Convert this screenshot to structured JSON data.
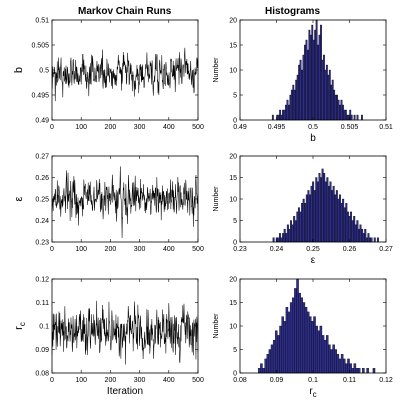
{
  "column_titles": {
    "left": "Markov Chain Runs",
    "right": "Histograms"
  },
  "colors": {
    "trace": "#000000",
    "bar_fill": "#2e2e8a",
    "bar_edge": "#000000",
    "axis": "#000000"
  },
  "chart_data": [
    {
      "type": "line",
      "panel": "trace-b",
      "ylabel": "b",
      "xlabel": "",
      "xlim": [
        0,
        500
      ],
      "ylim": [
        0.49,
        0.51
      ],
      "x_ticks": [
        "0",
        "100",
        "200",
        "300",
        "400",
        "500"
      ],
      "y_ticks": [
        "0.49",
        "0.495",
        "0.5",
        "0.505",
        "0.51"
      ],
      "series": [
        {
          "mean": 0.4995,
          "sd": 0.0018,
          "n_points": 500,
          "phase": 0
        }
      ]
    },
    {
      "type": "bar",
      "panel": "hist-b",
      "ylabel": "Number",
      "xlabel": "b",
      "xlim": [
        0.49,
        0.51
      ],
      "ylim": [
        0,
        20
      ],
      "x_ticks": [
        "0.49",
        "0.495",
        "0.5",
        "0.505",
        "0.51"
      ],
      "y_ticks": [
        "0",
        "5",
        "10",
        "15",
        "20"
      ],
      "bin_range": [
        0.494,
        0.507
      ],
      "values": [
        0,
        0,
        1,
        0,
        0,
        1,
        1,
        2,
        1,
        2,
        2,
        3,
        4,
        3,
        5,
        6,
        7,
        6,
        8,
        9,
        11,
        12,
        10,
        13,
        15,
        16,
        14,
        18,
        17,
        19,
        16,
        18,
        20,
        15,
        17,
        19,
        12,
        13,
        10,
        11,
        9,
        10,
        7,
        8,
        6,
        5,
        5,
        4,
        3,
        4,
        3,
        2,
        2,
        1,
        1,
        2,
        1,
        0,
        1,
        0,
        1,
        0,
        0,
        1,
        0
      ]
    },
    {
      "type": "line",
      "panel": "trace-eps",
      "ylabel": "ε",
      "xlabel": "",
      "xlim": [
        0,
        500
      ],
      "ylim": [
        0.23,
        0.27
      ],
      "x_ticks": [
        "0",
        "100",
        "200",
        "300",
        "400",
        "500"
      ],
      "y_ticks": [
        "0.23",
        "0.24",
        "0.25",
        "0.26",
        "0.27"
      ],
      "series": [
        {
          "mean": 0.2505,
          "sd": 0.0045,
          "n_points": 500,
          "phase": 2
        }
      ]
    },
    {
      "type": "bar",
      "panel": "hist-eps",
      "ylabel": "Number",
      "xlabel": "ε",
      "xlim": [
        0.23,
        0.27
      ],
      "ylim": [
        0,
        20
      ],
      "x_ticks": [
        "0.23",
        "0.24",
        "0.25",
        "0.26",
        "0.27"
      ],
      "y_ticks": [
        "0",
        "5",
        "10",
        "15",
        "20"
      ],
      "bin_range": [
        0.239,
        0.268
      ],
      "values": [
        1,
        0,
        1,
        1,
        2,
        1,
        2,
        3,
        2,
        4,
        3,
        5,
        4,
        6,
        5,
        7,
        8,
        7,
        9,
        10,
        9,
        11,
        12,
        11,
        13,
        14,
        12,
        15,
        14,
        16,
        15,
        17,
        16,
        14,
        15,
        13,
        14,
        12,
        13,
        11,
        12,
        10,
        11,
        9,
        10,
        8,
        9,
        7,
        6,
        7,
        5,
        6,
        4,
        5,
        3,
        4,
        3,
        2,
        3,
        1,
        2,
        1,
        1,
        0,
        1,
        0,
        1
      ]
    },
    {
      "type": "line",
      "panel": "trace-rc",
      "ylabel": "r",
      "ylabel_sub": "c",
      "xlabel": "Iteration",
      "xlim": [
        0,
        500
      ],
      "ylim": [
        0.08,
        0.12
      ],
      "x_ticks": [
        "0",
        "100",
        "200",
        "300",
        "400",
        "500"
      ],
      "y_ticks": [
        "0.08",
        "0.09",
        "0.1",
        "0.11",
        "0.12"
      ],
      "series": [
        {
          "mean": 0.0975,
          "sd": 0.0052,
          "n_points": 500,
          "phase": 5
        }
      ]
    },
    {
      "type": "bar",
      "panel": "hist-rc",
      "ylabel": "Number",
      "xlabel": "r",
      "xlabel_sub": "c",
      "xlim": [
        0.08,
        0.12
      ],
      "ylim": [
        0,
        20
      ],
      "x_ticks": [
        "0.08",
        "0.09",
        "0.1",
        "0.11",
        "0.12"
      ],
      "y_ticks": [
        "0",
        "5",
        "10",
        "15",
        "20"
      ],
      "bin_range": [
        0.085,
        0.117
      ],
      "values": [
        1,
        2,
        1,
        3,
        4,
        5,
        6,
        7,
        9,
        8,
        10,
        12,
        11,
        14,
        13,
        15,
        16,
        18,
        20,
        17,
        16,
        15,
        14,
        13,
        12,
        11,
        12,
        10,
        9,
        10,
        8,
        7,
        8,
        6,
        5,
        6,
        5,
        4,
        3,
        4,
        3,
        2,
        3,
        2,
        1,
        2,
        1,
        1,
        0,
        1,
        0,
        1,
        0,
        0,
        1
      ]
    }
  ]
}
